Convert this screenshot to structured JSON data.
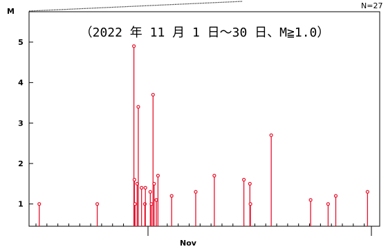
{
  "chart_data": {
    "type": "stem",
    "title": "（2022 年 11 月 1 日～30 日、M≧1.0）",
    "ylabel": "M",
    "xlabel": "Nov",
    "count_label": "N=27",
    "ylim": [
      0.45,
      5.75
    ],
    "xlim": [
      0,
      30
    ],
    "yticks": [
      1,
      2,
      3,
      4,
      5
    ],
    "grid": false,
    "stem_color": "#e8102a",
    "points": [
      {
        "day": 0.3,
        "m": 1.0
      },
      {
        "day": 5.6,
        "m": 1.0
      },
      {
        "day": 8.95,
        "m": 4.9
      },
      {
        "day": 9.0,
        "m": 1.6
      },
      {
        "day": 9.05,
        "m": 1.0
      },
      {
        "day": 9.25,
        "m": 1.5
      },
      {
        "day": 9.35,
        "m": 3.4
      },
      {
        "day": 9.65,
        "m": 1.4
      },
      {
        "day": 9.95,
        "m": 1.0
      },
      {
        "day": 10.0,
        "m": 1.4
      },
      {
        "day": 10.45,
        "m": 1.3
      },
      {
        "day": 10.55,
        "m": 1.0
      },
      {
        "day": 10.7,
        "m": 3.7
      },
      {
        "day": 10.8,
        "m": 1.5
      },
      {
        "day": 11.0,
        "m": 1.1
      },
      {
        "day": 11.15,
        "m": 1.7
      },
      {
        "day": 12.4,
        "m": 1.2
      },
      {
        "day": 14.6,
        "m": 1.3
      },
      {
        "day": 16.3,
        "m": 1.7
      },
      {
        "day": 19.0,
        "m": 1.6
      },
      {
        "day": 19.55,
        "m": 1.5
      },
      {
        "day": 19.6,
        "m": 1.0
      },
      {
        "day": 21.5,
        "m": 2.7
      },
      {
        "day": 25.1,
        "m": 1.1
      },
      {
        "day": 26.7,
        "m": 1.0
      },
      {
        "day": 27.4,
        "m": 1.2
      },
      {
        "day": 30.3,
        "m": 1.3
      }
    ]
  }
}
